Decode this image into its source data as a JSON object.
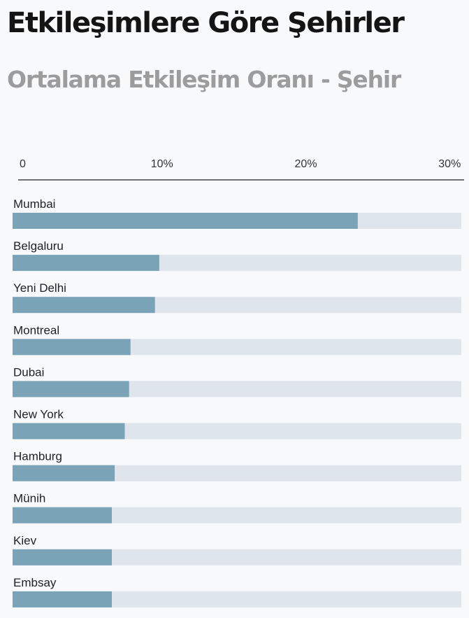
{
  "title": "Etkileşimlere Göre Şehirler",
  "subtitle": "Ortalama Etkileşim Oranı - Şehir",
  "colors": {
    "bar": "#7aa3b8",
    "track": "#dfe5ed",
    "axis": "#444444"
  },
  "chart_data": {
    "type": "bar",
    "orientation": "horizontal",
    "categories": [
      "Mumbai",
      "Belgaluru",
      "Yeni Delhi",
      "Montreal",
      "Dubai",
      "New York",
      "Hamburg",
      "Münih",
      "Kiev",
      "Embsay"
    ],
    "values": [
      24.0,
      10.2,
      9.9,
      8.2,
      8.1,
      7.8,
      7.1,
      6.9,
      6.9,
      6.9
    ],
    "xlim": [
      0,
      31.2
    ],
    "x_ticks": [
      0,
      10,
      20,
      30
    ],
    "x_tick_labels": [
      "0",
      "10%",
      "20%",
      "30%"
    ],
    "axis_position": "top",
    "grid": false,
    "legend": "none"
  }
}
